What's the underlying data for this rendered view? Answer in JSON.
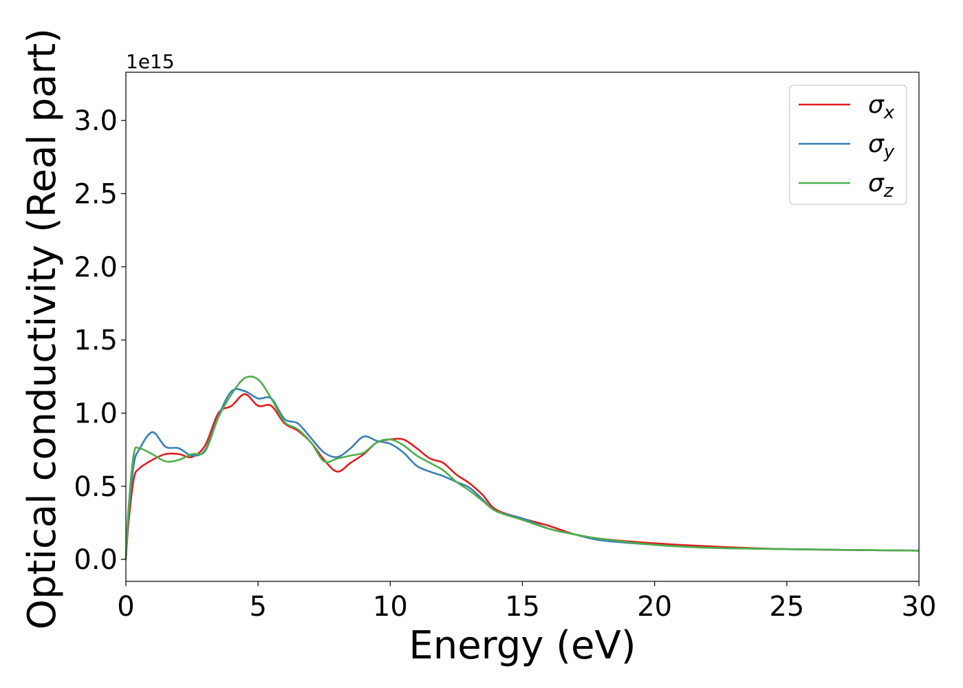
{
  "chart_data": {
    "type": "line",
    "title": "",
    "xlabel": "Energy (eV)",
    "ylabel": "Optical conductivity (Real part)",
    "y_offset_label": "1e15",
    "xlim": [
      0,
      30
    ],
    "ylim": [
      -0.15,
      3.33
    ],
    "x_ticks": [
      0,
      5,
      10,
      15,
      20,
      25,
      30
    ],
    "x_tick_labels": [
      "0",
      "5",
      "10",
      "15",
      "20",
      "25",
      "30"
    ],
    "y_ticks": [
      0.0,
      0.5,
      1.0,
      1.5,
      2.0,
      2.5,
      3.0
    ],
    "y_tick_labels": [
      "0.0",
      "0.5",
      "1.0",
      "1.5",
      "2.0",
      "2.5",
      "3.0"
    ],
    "grid": false,
    "legend_position": "top-right",
    "series": [
      {
        "name": "σx",
        "legend_main": "σ",
        "legend_sub": "x",
        "color": "#e41a1c",
        "x": [
          0,
          0.1,
          0.3,
          0.5,
          1.0,
          1.5,
          2.0,
          2.5,
          3.0,
          3.5,
          4.0,
          4.5,
          5.0,
          5.5,
          6.0,
          6.5,
          7.0,
          7.5,
          8.0,
          8.5,
          9.0,
          9.5,
          10.0,
          10.5,
          11.0,
          11.5,
          12.0,
          12.5,
          13.0,
          13.5,
          14.0,
          15.0,
          16.0,
          17.0,
          18.0,
          20.0,
          22.0,
          25.0,
          30.0
        ],
        "y": [
          0.0,
          0.25,
          0.55,
          0.62,
          0.68,
          0.72,
          0.72,
          0.7,
          0.78,
          1.0,
          1.05,
          1.13,
          1.05,
          1.05,
          0.93,
          0.88,
          0.8,
          0.68,
          0.6,
          0.66,
          0.72,
          0.8,
          0.82,
          0.82,
          0.76,
          0.69,
          0.66,
          0.58,
          0.52,
          0.44,
          0.34,
          0.28,
          0.23,
          0.17,
          0.14,
          0.11,
          0.09,
          0.07,
          0.06
        ]
      },
      {
        "name": "σy",
        "legend_main": "σ",
        "legend_sub": "y",
        "color": "#377eb8",
        "x": [
          0,
          0.1,
          0.3,
          0.5,
          1.0,
          1.5,
          2.0,
          2.5,
          3.0,
          3.5,
          4.0,
          4.5,
          5.0,
          5.5,
          6.0,
          6.5,
          7.0,
          7.5,
          8.0,
          8.5,
          9.0,
          9.5,
          10.0,
          10.5,
          11.0,
          11.5,
          12.0,
          12.5,
          13.0,
          13.5,
          14.0,
          15.0,
          16.0,
          17.0,
          18.0,
          20.0,
          22.0,
          25.0,
          30.0
        ],
        "y": [
          0.0,
          0.3,
          0.65,
          0.75,
          0.87,
          0.77,
          0.76,
          0.71,
          0.75,
          0.98,
          1.15,
          1.15,
          1.1,
          1.1,
          0.96,
          0.93,
          0.83,
          0.73,
          0.7,
          0.76,
          0.84,
          0.81,
          0.79,
          0.73,
          0.64,
          0.6,
          0.57,
          0.53,
          0.49,
          0.41,
          0.33,
          0.28,
          0.21,
          0.17,
          0.13,
          0.1,
          0.08,
          0.07,
          0.06
        ]
      },
      {
        "name": "σz",
        "legend_main": "σ",
        "legend_sub": "z",
        "color": "#4daf4a",
        "x": [
          0,
          0.1,
          0.3,
          0.5,
          1.0,
          1.5,
          2.0,
          2.5,
          3.0,
          3.5,
          4.0,
          4.5,
          5.0,
          5.5,
          6.0,
          6.5,
          7.0,
          7.5,
          8.0,
          8.5,
          9.0,
          9.5,
          10.0,
          10.5,
          11.0,
          11.5,
          12.0,
          12.5,
          13.0,
          13.5,
          14.0,
          15.0,
          16.0,
          17.0,
          18.0,
          20.0,
          22.0,
          25.0,
          30.0
        ],
        "y": [
          0.0,
          0.35,
          0.72,
          0.76,
          0.72,
          0.67,
          0.68,
          0.72,
          0.74,
          0.97,
          1.13,
          1.24,
          1.23,
          1.1,
          0.94,
          0.89,
          0.8,
          0.67,
          0.69,
          0.71,
          0.73,
          0.8,
          0.82,
          0.78,
          0.71,
          0.66,
          0.61,
          0.53,
          0.47,
          0.4,
          0.33,
          0.27,
          0.21,
          0.17,
          0.14,
          0.1,
          0.08,
          0.07,
          0.06
        ]
      }
    ]
  }
}
